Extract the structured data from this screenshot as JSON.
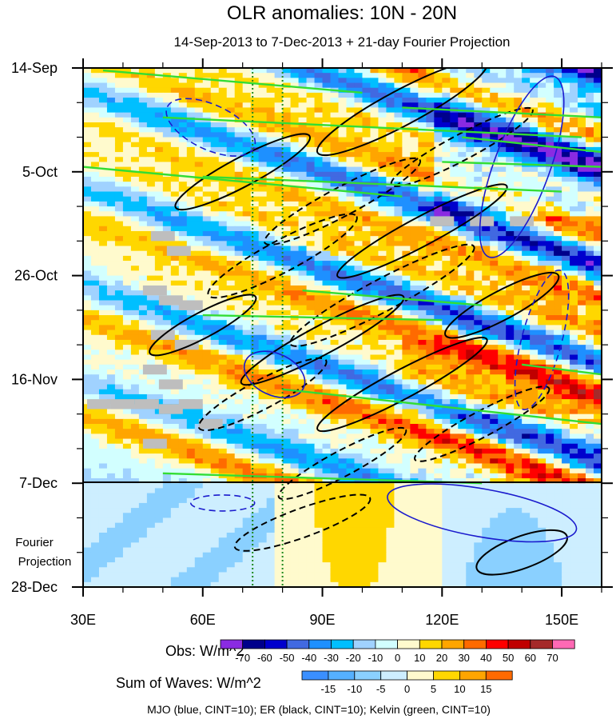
{
  "chart_data": {
    "type": "heatmap",
    "title": "OLR anomalies: 10N - 20N",
    "subtitle": "14-Sep-2013 to 7-Dec-2013 + 21-day Fourier Projection",
    "x_range": [
      30,
      160
    ],
    "x_ticks": [
      {
        "value": 30,
        "label": "30E"
      },
      {
        "value": 60,
        "label": "60E"
      },
      {
        "value": 90,
        "label": "90E"
      },
      {
        "value": 120,
        "label": "120E"
      },
      {
        "value": 150,
        "label": "150E"
      }
    ],
    "y_range_days": [
      0,
      105
    ],
    "y_ticks": [
      {
        "day": 0,
        "label": "14-Sep"
      },
      {
        "day": 21,
        "label": "5-Oct"
      },
      {
        "day": 42,
        "label": "26-Oct"
      },
      {
        "day": 63,
        "label": "16-Nov"
      },
      {
        "day": 84,
        "label": "7-Dec"
      },
      {
        "day": 105,
        "label": "28-Dec"
      }
    ],
    "forecast_label_line1": "Fourier",
    "forecast_label_line2": "Projection",
    "reference_lines_lon": [
      72.5,
      80
    ],
    "obs_legend": {
      "title": "Obs: W/m^2",
      "levels": [
        -70,
        -60,
        -50,
        -40,
        -30,
        -20,
        -10,
        0,
        10,
        20,
        30,
        40,
        50,
        60,
        70
      ],
      "colors": [
        "#8a2be2",
        "#00008b",
        "#0000cd",
        "#4169e1",
        "#1e90ff",
        "#00bfff",
        "#a0d2ff",
        "#d2ffff",
        "#fffacd",
        "#ffd700",
        "#ffa500",
        "#ff6a00",
        "#ff0000",
        "#c00000",
        "#a52a2a",
        "#ff69b4"
      ]
    },
    "waves_legend": {
      "title": "Sum of Waves: W/m^2",
      "levels": [
        -15,
        -10,
        -5,
        0,
        5,
        10,
        15
      ],
      "colors": [
        "#3a8fff",
        "#55b0ff",
        "#8ad0ff",
        "#cdeeff",
        "#fffacd",
        "#ffd700",
        "#ffa500",
        "#ff6a00"
      ]
    },
    "footer": "MJO (blue, CINT=10); ER (black, CINT=10); Kelvin (green, CINT=10)"
  }
}
